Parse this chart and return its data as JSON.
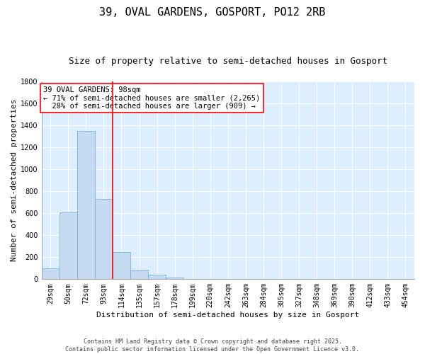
{
  "title1": "39, OVAL GARDENS, GOSPORT, PO12 2RB",
  "title2": "Size of property relative to semi-detached houses in Gosport",
  "xlabel": "Distribution of semi-detached houses by size in Gosport",
  "ylabel": "Number of semi-detached properties",
  "categories": [
    "29sqm",
    "50sqm",
    "72sqm",
    "93sqm",
    "114sqm",
    "135sqm",
    "157sqm",
    "178sqm",
    "199sqm",
    "220sqm",
    "242sqm",
    "263sqm",
    "284sqm",
    "305sqm",
    "327sqm",
    "348sqm",
    "369sqm",
    "390sqm",
    "412sqm",
    "433sqm",
    "454sqm"
  ],
  "values": [
    100,
    610,
    1350,
    730,
    250,
    85,
    40,
    15,
    5,
    3,
    2,
    2,
    2,
    1,
    1,
    1,
    1,
    1,
    1,
    0,
    0
  ],
  "bar_color": "#c5d9f0",
  "bar_edge_color": "#6baed6",
  "vline_x": 3.5,
  "vline_color": "red",
  "annotation_line1": "39 OVAL GARDENS: 98sqm",
  "annotation_line2": "← 71% of semi-detached houses are smaller (2,265)",
  "annotation_line3": "  28% of semi-detached houses are larger (909) →",
  "annotation_box_color": "white",
  "annotation_box_edge": "red",
  "ylim": [
    0,
    1800
  ],
  "yticks": [
    0,
    200,
    400,
    600,
    800,
    1000,
    1200,
    1400,
    1600,
    1800
  ],
  "background_color": "#ddeeff",
  "grid_color": "white",
  "footer": "Contains HM Land Registry data © Crown copyright and database right 2025.\nContains public sector information licensed under the Open Government Licence v3.0.",
  "title_fontsize": 11,
  "subtitle_fontsize": 9,
  "axis_label_fontsize": 8,
  "tick_fontsize": 7,
  "annotation_fontsize": 7.5
}
